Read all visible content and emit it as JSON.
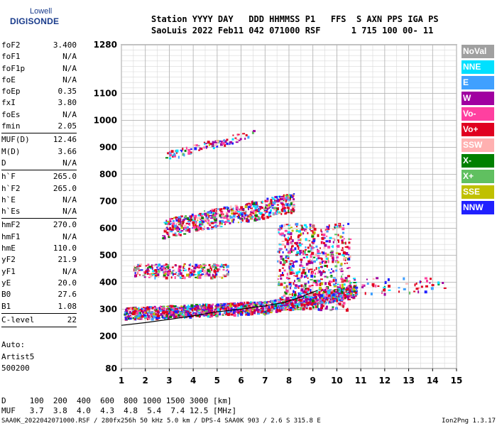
{
  "logo": {
    "line1": "Lowell",
    "line2": "DIGISONDE"
  },
  "header": {
    "line1": "Station YYYY DAY   DDD HHMMSS P1   FFS  S AXN PPS IGA PS",
    "line2": "SaoLuis 2022 Feb11 042 071000 RSF      1 715 100 00- 11"
  },
  "params": {
    "group1": [
      {
        "k": "foF2",
        "v": "3.400"
      },
      {
        "k": "foF1",
        "v": "N/A"
      },
      {
        "k": "foF1p",
        "v": "N/A"
      },
      {
        "k": "foE",
        "v": "N/A"
      },
      {
        "k": "foEp",
        "v": "0.35"
      },
      {
        "k": "fxI",
        "v": "3.80"
      },
      {
        "k": "foEs",
        "v": "N/A"
      },
      {
        "k": "fmin",
        "v": "2.05"
      }
    ],
    "group2": [
      {
        "k": "MUF(D)",
        "v": "12.46"
      },
      {
        "k": "M(D)",
        "v": "3.66"
      },
      {
        "k": "D",
        "v": "N/A"
      }
    ],
    "group3": [
      {
        "k": "h`F",
        "v": "265.0"
      },
      {
        "k": "h`F2",
        "v": "265.0"
      },
      {
        "k": "h`E",
        "v": "N/A"
      },
      {
        "k": "h`Es",
        "v": "N/A"
      }
    ],
    "group4": [
      {
        "k": "hmF2",
        "v": "270.0"
      },
      {
        "k": "hmF1",
        "v": "N/A"
      },
      {
        "k": "hmE",
        "v": "110.0"
      },
      {
        "k": "yF2",
        "v": "21.9"
      },
      {
        "k": "yF1",
        "v": "N/A"
      },
      {
        "k": "yE",
        "v": "20.0"
      },
      {
        "k": "B0",
        "v": "27.6"
      },
      {
        "k": "B1",
        "v": "1.08"
      }
    ],
    "group5": [
      {
        "k": "C-level",
        "v": "22"
      }
    ]
  },
  "auto": {
    "line1": "Auto:",
    "line2": "Artist5",
    "line3": "500200"
  },
  "legend": [
    {
      "label": "NoVal",
      "color": "#a0a0a0"
    },
    {
      "label": "NNE",
      "color": "#00e0ff"
    },
    {
      "label": "E",
      "color": "#40a0ff"
    },
    {
      "label": "W",
      "color": "#a000a0"
    },
    {
      "label": "Vo-",
      "color": "#ff40a0"
    },
    {
      "label": "Vo+",
      "color": "#e00020"
    },
    {
      "label": "SSW",
      "color": "#ffb0b0"
    },
    {
      "label": "X-",
      "color": "#008000"
    },
    {
      "label": "X+",
      "color": "#60c060"
    },
    {
      "label": "SSE",
      "color": "#c0c000"
    },
    {
      "label": "NNW",
      "color": "#2020ff"
    }
  ],
  "footer": {
    "line1": "D     100  200  400  600  800 1000 1500 3000 [km]",
    "line2": "MUF   3.7  3.8  4.0  4.3  4.8  5.4  7.4 12.5 [MHz]",
    "left": "SAA0K_2022042071000.RSF / 280fx256h 50 kHz 5.0 km / DPS-4 SAA0K 903 / 2.6 S 315.8 E",
    "right": "Ion2Png 1.3.17"
  },
  "chart_data": {
    "type": "scatter",
    "xlim": [
      1,
      15
    ],
    "ylim": [
      80,
      1280
    ],
    "x_ticks": [
      1,
      2,
      3,
      4,
      5,
      6,
      7,
      8,
      9,
      10,
      11,
      12,
      13,
      14,
      15
    ],
    "y_ticks": [
      80,
      200,
      300,
      400,
      500,
      600,
      700,
      800,
      900,
      1000,
      1100,
      1280
    ],
    "grid": true,
    "clusters": [
      {
        "name": "F-trace",
        "x_range": [
          1.1,
          10.8
        ],
        "y_range": [
          270,
          350
        ],
        "count": 1400
      },
      {
        "name": "F-spread",
        "x_range": [
          7.5,
          10.5
        ],
        "y_range": [
          300,
          620
        ],
        "count": 650
      },
      {
        "name": "F-mid",
        "x_range": [
          1.5,
          5.5
        ],
        "y_range": [
          420,
          470
        ],
        "count": 260
      },
      {
        "name": "2F",
        "x_range": [
          2.7,
          8.2
        ],
        "y_range": [
          560,
          760
        ],
        "count": 600
      },
      {
        "name": "3F",
        "x_range": [
          2.8,
          6.5
        ],
        "y_range": [
          860,
          960
        ],
        "count": 90
      },
      {
        "name": "tail",
        "x_range": [
          10.5,
          14.5
        ],
        "y_range": [
          360,
          420
        ],
        "count": 60
      }
    ],
    "profile_curve": [
      [
        1,
        240
      ],
      [
        2,
        250
      ],
      [
        3,
        262
      ],
      [
        4,
        275
      ],
      [
        5,
        290
      ],
      [
        6,
        300
      ],
      [
        7,
        312
      ],
      [
        7.8,
        325
      ],
      [
        8.5,
        345
      ],
      [
        9.2,
        370
      ]
    ]
  }
}
